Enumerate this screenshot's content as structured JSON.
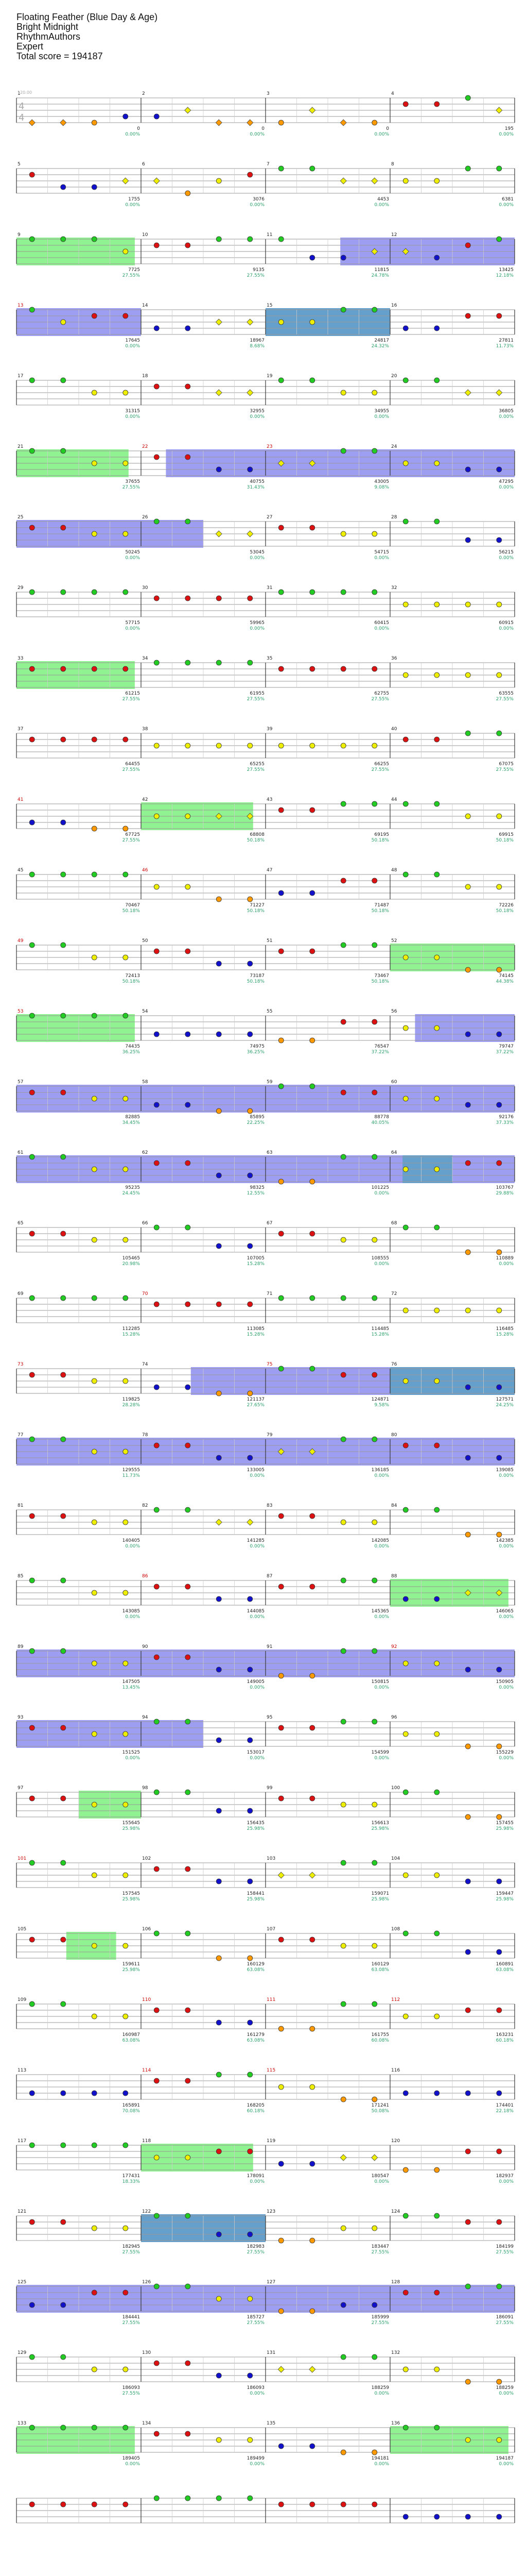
{
  "header": {
    "song_title": "Floating Feather (Blue Day & Age)",
    "artist": "Bright Midnight",
    "charter": "RhythmAuthors",
    "difficulty": "Expert",
    "total_score_label": "Total score = 194187"
  },
  "chart_data": {
    "type": "table",
    "description_note": "",
    "time_signature": "4/4",
    "tempo_label": "120.00",
    "lane_colors": {
      "green": "#22cc22",
      "red": "#dd1111",
      "yellow": "#eeee00",
      "blue": "#1111cc",
      "orange": "#ff9900",
      "star_power_fill": "#7cf07c",
      "solo_fill": "#8c8cf0",
      "solo_starpower_fill": "#5fa0c8",
      "score_text": "#222222",
      "percent_text": "#2ba06a",
      "measure_number": "#222222",
      "highlight_measure_number": "#cc0000"
    },
    "measures": [
      {
        "n": 1,
        "score": "0",
        "pct": "0.00%"
      },
      {
        "n": 2,
        "score": "0",
        "pct": "0.00%"
      },
      {
        "n": 3,
        "score": "0",
        "pct": "0.00%"
      },
      {
        "n": 4,
        "score": "195",
        "pct": "0.00%"
      },
      {
        "n": 5,
        "score": "1755",
        "pct": "0.00%"
      },
      {
        "n": 6,
        "score": "3076",
        "pct": "0.00%"
      },
      {
        "n": 7,
        "score": "4453",
        "pct": "0.00%"
      },
      {
        "n": 8,
        "score": "6381",
        "pct": "0.00%"
      },
      {
        "n": 9,
        "score": "7725",
        "pct": "27.55%"
      },
      {
        "n": 10,
        "score": "9135",
        "pct": "27.55%"
      },
      {
        "n": 11,
        "score": "11815",
        "pct": "24.78%"
      },
      {
        "n": 12,
        "score": "13425",
        "pct": "12.18%"
      },
      {
        "n": 13,
        "score": "17645",
        "pct": "0.00%"
      },
      {
        "n": 14,
        "score": "18967",
        "pct": "8.68%"
      },
      {
        "n": 15,
        "score": "24817",
        "pct": "24.32%"
      },
      {
        "n": 16,
        "score": "27811",
        "pct": "11.73%"
      },
      {
        "n": 17,
        "score": "31315",
        "pct": "0.00%"
      },
      {
        "n": 18,
        "score": "32955",
        "pct": "0.00%"
      },
      {
        "n": 19,
        "score": "34955",
        "pct": "0.00%"
      },
      {
        "n": 20,
        "score": "36805",
        "pct": "0.00%"
      },
      {
        "n": 21,
        "score": "37655",
        "pct": "27.55%"
      },
      {
        "n": 22,
        "score": "40755",
        "pct": "31.43%"
      },
      {
        "n": 23,
        "score": "43005",
        "pct": "9.08%"
      },
      {
        "n": 24,
        "score": "47295",
        "pct": "0.00%"
      },
      {
        "n": 25,
        "score": "50245",
        "pct": "0.00%"
      },
      {
        "n": 26,
        "score": "53045",
        "pct": "0.00%"
      },
      {
        "n": 27,
        "score": "54715",
        "pct": "0.00%"
      },
      {
        "n": 28,
        "score": "56215",
        "pct": "0.00%"
      },
      {
        "n": 29,
        "score": "57715",
        "pct": "0.00%"
      },
      {
        "n": 30,
        "score": "59965",
        "pct": "0.00%"
      },
      {
        "n": 31,
        "score": "60415",
        "pct": "0.00%"
      },
      {
        "n": 32,
        "score": "60915",
        "pct": "0.00%"
      },
      {
        "n": 33,
        "score": "61215",
        "pct": "27.55%"
      },
      {
        "n": 34,
        "score": "61955",
        "pct": "27.55%"
      },
      {
        "n": 35,
        "score": "62755",
        "pct": "27.55%"
      },
      {
        "n": 36,
        "score": "63555",
        "pct": "27.55%"
      },
      {
        "n": 37,
        "score": "64455",
        "pct": "27.55%"
      },
      {
        "n": 38,
        "score": "65255",
        "pct": "27.55%"
      },
      {
        "n": 39,
        "score": "66255",
        "pct": "27.55%"
      },
      {
        "n": 40,
        "score": "67075",
        "pct": "27.55%"
      },
      {
        "n": 41,
        "score": "67725",
        "pct": "27.55%"
      },
      {
        "n": 42,
        "score": "68808",
        "pct": "50.18%"
      },
      {
        "n": 43,
        "score": "69195",
        "pct": "50.18%"
      },
      {
        "n": 44,
        "score": "69915",
        "pct": "50.18%"
      },
      {
        "n": 45,
        "score": "70467",
        "pct": "50.18%"
      },
      {
        "n": 46,
        "score": "71227",
        "pct": "50.18%"
      },
      {
        "n": 47,
        "score": "71487",
        "pct": "50.18%"
      },
      {
        "n": 48,
        "score": "72226",
        "pct": "50.18%"
      },
      {
        "n": 49,
        "score": "72413",
        "pct": "50.18%"
      },
      {
        "n": 50,
        "score": "73187",
        "pct": "50.18%"
      },
      {
        "n": 51,
        "score": "73467",
        "pct": "50.18%"
      },
      {
        "n": 52,
        "score": "74145",
        "pct": "44.38%"
      },
      {
        "n": 53,
        "score": "74435",
        "pct": "36.25%"
      },
      {
        "n": 54,
        "score": "74975",
        "pct": "36.25%"
      },
      {
        "n": 55,
        "score": "76547",
        "pct": "37.22%"
      },
      {
        "n": 56,
        "score": "79747",
        "pct": "37.22%"
      },
      {
        "n": 57,
        "score": "82885",
        "pct": "34.45%"
      },
      {
        "n": 58,
        "score": "85895",
        "pct": "22.25%"
      },
      {
        "n": 59,
        "score": "88778",
        "pct": "40.05%"
      },
      {
        "n": 60,
        "score": "92176",
        "pct": "37.33%"
      },
      {
        "n": 61,
        "score": "95235",
        "pct": "24.45%"
      },
      {
        "n": 62,
        "score": "98325",
        "pct": "12.55%"
      },
      {
        "n": 63,
        "score": "101225",
        "pct": "0.00%"
      },
      {
        "n": 64,
        "score": "103767",
        "pct": "29.88%"
      },
      {
        "n": 65,
        "score": "105465",
        "pct": "20.98%"
      },
      {
        "n": 66,
        "score": "107005",
        "pct": "15.28%"
      },
      {
        "n": 67,
        "score": "108555",
        "pct": "0.00%"
      },
      {
        "n": 68,
        "score": "110889",
        "pct": "0.00%"
      },
      {
        "n": 69,
        "score": "112285",
        "pct": "15.28%"
      },
      {
        "n": 70,
        "score": "113085",
        "pct": "15.28%"
      },
      {
        "n": 71,
        "score": "114485",
        "pct": "15.28%"
      },
      {
        "n": 72,
        "score": "116485",
        "pct": "15.28%"
      },
      {
        "n": 73,
        "score": "119825",
        "pct": "28.28%"
      },
      {
        "n": 74,
        "score": "121137",
        "pct": "27.65%"
      },
      {
        "n": 75,
        "score": "124871",
        "pct": "9.58%"
      },
      {
        "n": 76,
        "score": "127571",
        "pct": "24.25%"
      },
      {
        "n": 77,
        "score": "129555",
        "pct": "11.73%"
      },
      {
        "n": 78,
        "score": "133005",
        "pct": "0.00%"
      },
      {
        "n": 79,
        "score": "136185",
        "pct": "0.00%"
      },
      {
        "n": 80,
        "score": "139085",
        "pct": "0.00%"
      },
      {
        "n": 81,
        "score": "140405",
        "pct": "0.00%"
      },
      {
        "n": 82,
        "score": "141285",
        "pct": "0.00%"
      },
      {
        "n": 83,
        "score": "142085",
        "pct": "0.00%"
      },
      {
        "n": 84,
        "score": "142385",
        "pct": "0.00%"
      },
      {
        "n": 85,
        "score": "143085",
        "pct": "0.00%"
      },
      {
        "n": 86,
        "score": "144085",
        "pct": "0.00%"
      },
      {
        "n": 87,
        "score": "145365",
        "pct": "0.00%"
      },
      {
        "n": 88,
        "score": "146065",
        "pct": "0.00%"
      },
      {
        "n": 89,
        "score": "147505",
        "pct": "13.45%"
      },
      {
        "n": 90,
        "score": "149005",
        "pct": "0.00%"
      },
      {
        "n": 91,
        "score": "150815",
        "pct": "0.00%"
      },
      {
        "n": 92,
        "score": "150905",
        "pct": "0.00%"
      },
      {
        "n": 93,
        "score": "151525",
        "pct": "0.00%"
      },
      {
        "n": 94,
        "score": "153017",
        "pct": "0.00%"
      },
      {
        "n": 95,
        "score": "154599",
        "pct": "0.00%"
      },
      {
        "n": 96,
        "score": "155229",
        "pct": "0.00%"
      },
      {
        "n": 97,
        "score": "155645",
        "pct": "25.98%"
      },
      {
        "n": 98,
        "score": "156435",
        "pct": "25.98%"
      },
      {
        "n": 99,
        "score": "156613",
        "pct": "25.98%"
      },
      {
        "n": 100,
        "score": "157455",
        "pct": "25.98%"
      },
      {
        "n": 101,
        "score": "157545",
        "pct": "25.98%"
      },
      {
        "n": 102,
        "score": "158441",
        "pct": "25.98%"
      },
      {
        "n": 103,
        "score": "159071",
        "pct": "25.98%"
      },
      {
        "n": 104,
        "score": "159447",
        "pct": "25.98%"
      },
      {
        "n": 105,
        "score": "159611",
        "pct": "25.98%"
      },
      {
        "n": 106,
        "score": "160129",
        "pct": "63.08%"
      },
      {
        "n": 107,
        "score": "160129",
        "pct": "63.08%"
      },
      {
        "n": 108,
        "score": "160891",
        "pct": "63.08%"
      },
      {
        "n": 109,
        "score": "160987",
        "pct": "63.08%"
      },
      {
        "n": 110,
        "score": "161279",
        "pct": "63.08%"
      },
      {
        "n": 111,
        "score": "161755",
        "pct": "60.08%"
      },
      {
        "n": 112,
        "score": "163231",
        "pct": "60.18%"
      },
      {
        "n": 113,
        "score": "165891",
        "pct": "70.08%"
      },
      {
        "n": 114,
        "score": "168205",
        "pct": "60.18%"
      },
      {
        "n": 115,
        "score": "171241",
        "pct": "50.08%"
      },
      {
        "n": 116,
        "score": "174401",
        "pct": "22.18%"
      },
      {
        "n": 117,
        "score": "177431",
        "pct": "18.33%"
      },
      {
        "n": 118,
        "score": "178091",
        "pct": "0.00%"
      },
      {
        "n": 119,
        "score": "180547",
        "pct": "0.00%"
      },
      {
        "n": 120,
        "score": "182937",
        "pct": "0.00%"
      },
      {
        "n": 121,
        "score": "182945",
        "pct": "27.55%"
      },
      {
        "n": 122,
        "score": "182983",
        "pct": "27.55%"
      },
      {
        "n": 123,
        "score": "183447",
        "pct": "27.55%"
      },
      {
        "n": 124,
        "score": "184199",
        "pct": "27.55%"
      },
      {
        "n": 125,
        "score": "184441",
        "pct": "27.55%"
      },
      {
        "n": 126,
        "score": "185727",
        "pct": "27.55%"
      },
      {
        "n": 127,
        "score": "185999",
        "pct": "27.55%"
      },
      {
        "n": 128,
        "score": "186091",
        "pct": "27.55%"
      },
      {
        "n": 129,
        "score": "186093",
        "pct": "27.55%"
      },
      {
        "n": 130,
        "score": "186093",
        "pct": "0.00%"
      },
      {
        "n": 131,
        "score": "188259",
        "pct": "0.00%"
      },
      {
        "n": 132,
        "score": "188259",
        "pct": "0.00%"
      },
      {
        "n": 133,
        "score": "189405",
        "pct": "0.00%"
      },
      {
        "n": 134,
        "score": "189499",
        "pct": "0.00%"
      },
      {
        "n": 135,
        "score": "194181",
        "pct": "0.00%"
      },
      {
        "n": 136,
        "score": "194187",
        "pct": "0.00%"
      }
    ],
    "highlight_measures": [
      13,
      22,
      23,
      41,
      46,
      49,
      53,
      70,
      73,
      75,
      86,
      92,
      101,
      110,
      111,
      112,
      114,
      115
    ],
    "rows": [
      {
        "sp": [],
        "solo": [],
        "notes": "AAOBBSAAOSAORRGS"
      },
      {
        "sp": [],
        "solo": [],
        "notes": "RBBSSOYRGGSSYYGG"
      },
      {
        "sp": [
          [
            0.0,
            0.95
          ]
        ],
        "solo": [
          [
            2.6,
            4.0
          ]
        ],
        "notes": "GGGYRRGGGBBSSBRG"
      },
      {
        "sp": [],
        "solo": [
          [
            0.0,
            1.0
          ],
          [
            2.0,
            3.0
          ]
        ],
        "xs": [
          [
            2.0,
            3.0
          ]
        ],
        "notes": "GYRRBBSSYYGGBBRR"
      },
      {
        "sp": [],
        "solo": [],
        "notes": "GGYYRRSSGGYYGGSS"
      },
      {
        "sp": [
          [
            0.0,
            0.9
          ]
        ],
        "solo": [
          [
            1.2,
            4.0
          ]
        ],
        "notes": "GGYYRRBBSSGGYYBB"
      },
      {
        "sp": [],
        "solo": [
          [
            0.0,
            1.5
          ]
        ],
        "notes": "RRYYGGSSRRYYGGBB"
      },
      {
        "sp": [],
        "solo": [],
        "notes": "GGGGRRRRGGGGYYYY"
      },
      {
        "sp": [
          [
            0.0,
            0.95
          ]
        ],
        "solo": [],
        "notes": "RRRRGGGGRRRRYYYY"
      },
      {
        "sp": [],
        "solo": [],
        "notes": "RRRRYYYYYYYYRRGG"
      },
      {
        "sp": [
          [
            1.0,
            1.9
          ]
        ],
        "solo": [],
        "notes": "BBOOYYSSRRGGGGYY"
      },
      {
        "sp": [],
        "solo": [],
        "notes": "GGGGYYOOBBRRGGYY"
      },
      {
        "sp": [
          [
            3.0,
            4.0
          ]
        ],
        "solo": [],
        "notes": "GGYYRRBBRRGGYYOO"
      },
      {
        "sp": [
          [
            0.0,
            0.95
          ]
        ],
        "solo": [
          [
            3.2,
            4.0
          ]
        ],
        "notes": "GGGGBBBBOORRYYBB"
      },
      {
        "sp": [],
        "solo": [
          [
            0.0,
            4.0
          ]
        ],
        "notes": "RRYYBBOOGGRRYYBB"
      },
      {
        "sp": [],
        "solo": [
          [
            0.0,
            4.0
          ]
        ],
        "xs": [
          [
            3.1,
            3.5
          ]
        ],
        "notes": "GGYYRRBBOOGGYYRR"
      },
      {
        "sp": [],
        "solo": [],
        "notes": "RRYYGGBBRRYYGGOO"
      },
      {
        "sp": [],
        "solo": [],
        "notes": "GGGGRRRRGGGGYYYY"
      },
      {
        "sp": [],
        "solo": [
          [
            1.4,
            4.0
          ]
        ],
        "xs": [
          [
            3.0,
            4.0
          ]
        ],
        "notes": "RRYYBBOOGGRRYYBB"
      },
      {
        "sp": [],
        "solo": [
          [
            0.0,
            4.0
          ]
        ],
        "notes": "GGYYRRBBSSGGRRBB"
      },
      {
        "sp": [],
        "solo": [],
        "notes": "RRYYGGSSRRYYGGOO"
      },
      {
        "sp": [
          [
            3.0,
            3.95
          ]
        ],
        "solo": [],
        "notes": "GGYYRRBBRRGGBBSS"
      },
      {
        "sp": [],
        "solo": [
          [
            0.0,
            4.0
          ]
        ],
        "notes": "GGYYRRBBOOGGYYBB"
      },
      {
        "sp": [],
        "solo": [
          [
            0.0,
            1.5
          ]
        ],
        "notes": "RRYYGGBBRRGGYYOO"
      },
      {
        "sp": [
          [
            0.5,
            1.0
          ]
        ],
        "solo": [],
        "notes": "RRYYGGBBRRYYGGOO"
      },
      {
        "sp": [],
        "solo": [],
        "notes": "GGYYRRBBSSGGYYBB"
      },
      {
        "sp": [
          [
            0.4,
            0.8
          ]
        ],
        "solo": [],
        "notes": "RRYYGGOORRYYGGBB"
      },
      {
        "sp": [],
        "solo": [],
        "notes": "GGYYRRBBOOGGYYRR"
      },
      {
        "sp": [],
        "solo": [],
        "notes": "BBBBRRGGYYOOBBBB"
      },
      {
        "sp": [
          [
            1.0,
            1.9
          ]
        ],
        "solo": [],
        "notes": "GGGGYYRRBBSSOORR"
      },
      {
        "sp": [],
        "solo": [
          [
            1.0,
            2.0
          ]
        ],
        "xs": [
          [
            1.0,
            2.0
          ]
        ],
        "notes": "RRYYGGBBOOYYGGRR"
      },
      {
        "sp": [],
        "solo": [
          [
            0.0,
            4.0
          ]
        ],
        "notes": "BBRRGGYYOOBBRRGG"
      },
      {
        "sp": [],
        "solo": [],
        "notes": "GGYYRRBBSSGGYYOO"
      },
      {
        "sp": [
          [
            0.0,
            0.95
          ],
          [
            3.0,
            3.95
          ]
        ],
        "solo": [],
        "notes": "GGGGRRYYBBOOGGYY"
      },
      {
        "sp": [],
        "solo": [],
        "notes": "RRRRGGGGRRRRBBBB"
      }
    ]
  }
}
